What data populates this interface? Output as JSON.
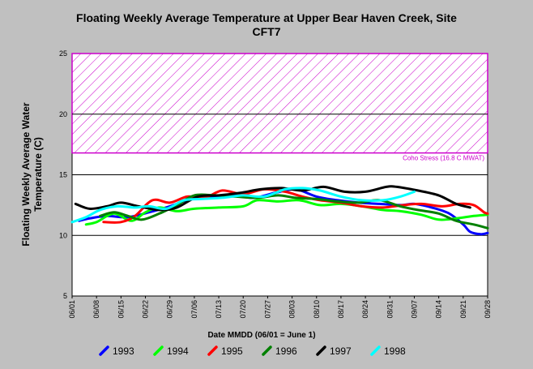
{
  "chart_data": {
    "type": "line",
    "title_line1": "Floating Weekly Average Temperature at Upper Bear Haven Creek, Site",
    "title_line2": "CFT7",
    "ylabel_line1": "Floating Weekly Average Water",
    "ylabel_line2": "Temperature (C)",
    "xlabel": "Date MMDD (06/01 = June 1)",
    "ylim": [
      5,
      25
    ],
    "yticks": [
      "5",
      "10",
      "15",
      "20",
      "25"
    ],
    "x_tick_labels": [
      "06/01",
      "06/08",
      "06/15",
      "06/22",
      "06/29",
      "07/06",
      "07/13",
      "07/20",
      "07/27",
      "08/03",
      "08/10",
      "08/17",
      "08/24",
      "08/31",
      "09/07",
      "09/14",
      "09/21",
      "09/28"
    ],
    "x_days_range": [
      0,
      119
    ],
    "grid_lines_y": [
      10,
      15,
      20
    ],
    "stress_zone": {
      "from": 16.8,
      "to": 25,
      "color": "#cc00cc",
      "label": "Coho Stress (16.8 C MWAT)"
    },
    "series": [
      {
        "name": "1993",
        "color": "#0000ff",
        "x": [
          "06/03",
          "06/06",
          "06/11",
          "06/17",
          "06/23",
          "06/29",
          "07/05",
          "07/11",
          "07/17",
          "07/23",
          "07/29",
          "08/04",
          "08/10",
          "08/16",
          "08/22",
          "08/28",
          "09/03",
          "09/07",
          "09/12",
          "09/17",
          "09/21",
          "09/23",
          "09/26",
          "09/28"
        ],
        "y": [
          11.2,
          11.4,
          11.6,
          11.5,
          11.9,
          12.4,
          13.0,
          13.2,
          13.3,
          13.1,
          13.5,
          13.8,
          13.2,
          12.9,
          12.7,
          12.6,
          12.5,
          12.6,
          12.3,
          11.8,
          10.9,
          10.3,
          10.1,
          10.2
        ]
      },
      {
        "name": "1994",
        "color": "#00ff00",
        "x": [
          "06/05",
          "06/08",
          "06/13",
          "06/18",
          "06/22",
          "06/26",
          "07/01",
          "07/06",
          "07/13",
          "07/20",
          "07/24",
          "07/30",
          "08/05",
          "08/11",
          "08/17",
          "08/23",
          "08/29",
          "09/03",
          "09/09",
          "09/14",
          "09/19",
          "09/24",
          "09/28"
        ],
        "y": [
          10.9,
          11.1,
          11.8,
          11.2,
          11.9,
          12.3,
          12.0,
          12.2,
          12.3,
          12.4,
          12.9,
          12.8,
          12.9,
          12.5,
          12.6,
          12.4,
          12.1,
          12.0,
          11.7,
          11.3,
          11.4,
          11.6,
          11.7
        ]
      },
      {
        "name": "1995",
        "color": "#ff0000",
        "x": [
          "06/10",
          "06/15",
          "06/19",
          "06/24",
          "06/29",
          "07/04",
          "07/09",
          "07/14",
          "07/20",
          "07/26",
          "08/01",
          "08/06",
          "08/11",
          "08/17",
          "08/23",
          "08/29",
          "09/04",
          "09/09",
          "09/15",
          "09/20",
          "09/24",
          "09/27",
          "09/28"
        ],
        "y": [
          11.1,
          11.1,
          11.6,
          12.9,
          12.7,
          13.2,
          13.1,
          13.7,
          13.4,
          13.8,
          13.6,
          13.2,
          12.9,
          12.7,
          12.4,
          12.3,
          12.5,
          12.6,
          12.4,
          12.6,
          12.5,
          11.9,
          11.8
        ]
      },
      {
        "name": "1996",
        "color": "#008000",
        "x": [
          "06/09",
          "06/13",
          "06/17",
          "06/21",
          "06/26",
          "07/01",
          "07/06",
          "07/12",
          "07/18",
          "07/24",
          "07/30",
          "08/04",
          "08/10",
          "08/16",
          "08/22",
          "08/28",
          "09/03",
          "09/08",
          "09/14",
          "09/19",
          "09/24",
          "09/28"
        ],
        "y": [
          11.6,
          11.9,
          11.6,
          11.3,
          11.8,
          12.5,
          13.3,
          13.3,
          13.2,
          13.1,
          13.3,
          13.1,
          13.0,
          12.8,
          12.7,
          12.9,
          12.4,
          12.1,
          11.8,
          11.2,
          10.9,
          10.6
        ]
      },
      {
        "name": "1997",
        "color": "#000000",
        "x": [
          "06/02",
          "06/06",
          "06/11",
          "06/15",
          "06/20",
          "06/26",
          "07/01",
          "07/07",
          "07/13",
          "07/19",
          "07/25",
          "07/31",
          "08/06",
          "08/12",
          "08/18",
          "08/24",
          "08/30",
          "09/02",
          "09/08",
          "09/14",
          "09/19",
          "09/23"
        ],
        "y": [
          12.6,
          12.2,
          12.4,
          12.7,
          12.4,
          12.1,
          12.3,
          13.2,
          13.3,
          13.5,
          13.8,
          13.9,
          13.7,
          14.0,
          13.6,
          13.6,
          14.0,
          14.0,
          13.7,
          13.3,
          12.6,
          12.3
        ]
      },
      {
        "name": "1998",
        "color": "#00ffff",
        "x": [
          "06/01",
          "06/05",
          "06/09",
          "06/14",
          "06/19",
          "06/23",
          "06/28",
          "07/03",
          "07/08",
          "07/14",
          "07/20",
          "07/26",
          "08/01",
          "08/06",
          "08/11",
          "08/17",
          "08/23",
          "08/29",
          "09/03",
          "09/07"
        ],
        "y": [
          11.1,
          11.5,
          12.1,
          12.4,
          12.3,
          12.4,
          12.2,
          12.9,
          13.0,
          13.1,
          13.3,
          13.2,
          13.8,
          13.9,
          13.7,
          13.2,
          12.9,
          12.9,
          13.2,
          13.6
        ]
      }
    ]
  }
}
